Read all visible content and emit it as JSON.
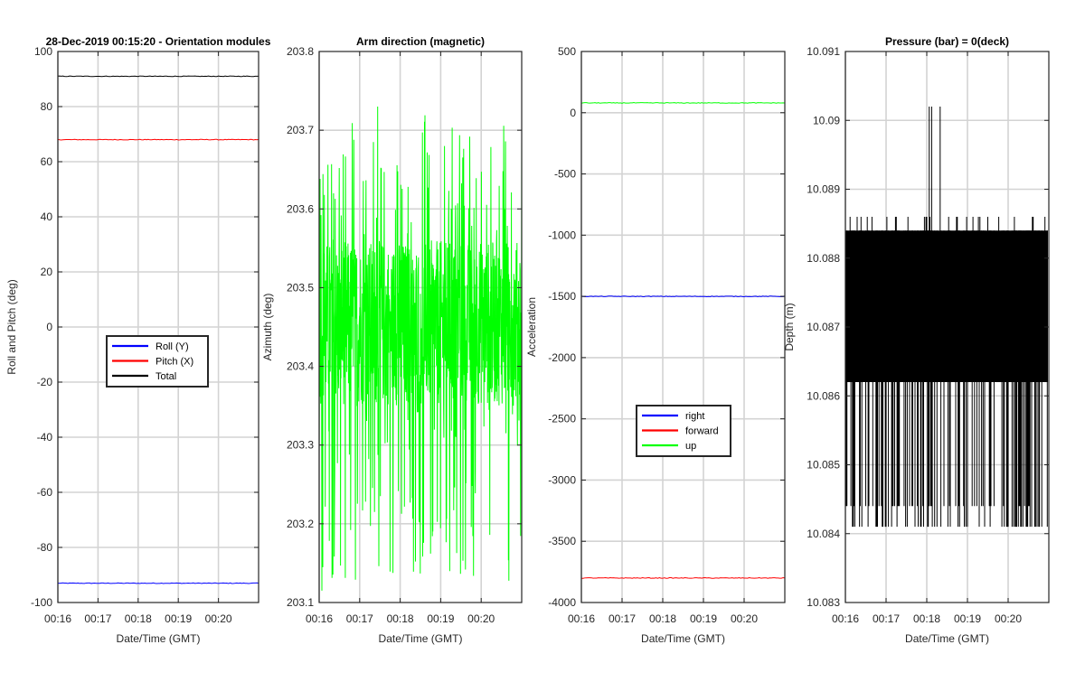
{
  "colors": {
    "roll": "#0000ff",
    "pitch": "#ff0000",
    "total": "#000000",
    "azimuth": "#00ff00",
    "right": "#0000ff",
    "forward": "#ff0000",
    "up": "#00ff00",
    "depth": "#000000",
    "grid": "#d3d3d3",
    "axis": "#262626"
  },
  "chart_data": [
    {
      "type": "line",
      "title": "28-Dec-2019 00:15:20 - Orientation modules",
      "xlabel": "Date/Time (GMT)",
      "ylabel": "Roll and Pitch (deg)",
      "x_tick_labels": [
        "00:16",
        "00:17",
        "00:18",
        "00:19",
        "00:20"
      ],
      "x_ticks_min": [
        16,
        17,
        18,
        19,
        20
      ],
      "xlim_min": [
        16,
        21
      ],
      "ylim": [
        -100,
        100
      ],
      "y_ticks": [
        100,
        80,
        60,
        40,
        20,
        0,
        -20,
        -40,
        -60,
        -80,
        -100
      ],
      "grid": true,
      "legend_position": "center-left",
      "legend": [
        "Roll (Y)",
        "Pitch (X)",
        "Total"
      ],
      "series": [
        {
          "name": "Roll (Y)",
          "x_min": [
            16,
            21
          ],
          "values": [
            -93,
            -93
          ]
        },
        {
          "name": "Pitch (X)",
          "x_min": [
            16,
            21
          ],
          "values": [
            68,
            68
          ]
        },
        {
          "name": "Total",
          "x_min": [
            16,
            21
          ],
          "values": [
            91,
            91
          ]
        }
      ]
    },
    {
      "type": "line",
      "title": "Arm direction (magnetic)",
      "xlabel": "Date/Time (GMT)",
      "ylabel": "Azimuth (deg)",
      "x_tick_labels": [
        "00:16",
        "00:17",
        "00:18",
        "00:19",
        "00:20"
      ],
      "x_ticks_min": [
        16,
        17,
        18,
        19,
        20
      ],
      "xlim_min": [
        16,
        21
      ],
      "ylim": [
        203.1,
        203.8
      ],
      "y_ticks": [
        "203.8",
        "203.7",
        "203.6",
        "203.5",
        "203.4",
        "203.3",
        "203.2",
        "203.1"
      ],
      "grid": true,
      "series": [
        {
          "name": "Azimuth",
          "x_min": [
            16,
            21
          ],
          "values": [
            203.45,
            203.45
          ],
          "noise_band": [
            203.11,
            203.73
          ],
          "typical_band": [
            203.35,
            203.56
          ]
        }
      ]
    },
    {
      "type": "line",
      "title": "",
      "xlabel": "Date/Time (GMT)",
      "ylabel": "Acceleration",
      "x_tick_labels": [
        "00:16",
        "00:17",
        "00:18",
        "00:19",
        "00:20"
      ],
      "x_ticks_min": [
        16,
        17,
        18,
        19,
        20
      ],
      "xlim_min": [
        16,
        21
      ],
      "ylim": [
        -4000,
        500
      ],
      "y_ticks": [
        500,
        0,
        -500,
        -1000,
        -1500,
        -2000,
        -2500,
        -3000,
        -3500,
        -4000
      ],
      "grid": true,
      "legend_position": "lower-center",
      "legend": [
        "right",
        "forward",
        "up"
      ],
      "series": [
        {
          "name": "right",
          "x_min": [
            16,
            21
          ],
          "values": [
            -1500,
            -1500
          ]
        },
        {
          "name": "forward",
          "x_min": [
            16,
            21
          ],
          "values": [
            -3800,
            -3800
          ]
        },
        {
          "name": "up",
          "x_min": [
            16,
            21
          ],
          "values": [
            80,
            80
          ]
        }
      ]
    },
    {
      "type": "line",
      "title": "Pressure (bar) = 0(deck)",
      "xlabel": "Date/Time (GMT)",
      "ylabel": "Depth (m)",
      "x_tick_labels": [
        "00:16",
        "00:17",
        "00:18",
        "00:19",
        "00:20"
      ],
      "x_ticks_min": [
        16,
        17,
        18,
        19,
        20
      ],
      "xlim_min": [
        16,
        21
      ],
      "ylim": [
        10.083,
        10.091
      ],
      "y_ticks": [
        "10.091",
        "10.09",
        "10.089",
        "10.088",
        "10.087",
        "10.086",
        "10.085",
        "10.084",
        "10.083"
      ],
      "grid": true,
      "series": [
        {
          "name": "Depth",
          "x_min": [
            16,
            21
          ],
          "values": [
            10.0873,
            10.0873
          ],
          "band_high": 10.0884,
          "band_low": 10.0862,
          "spike_high": 10.0902,
          "spike_low": 10.0841,
          "spike_times_min": [
            18.06,
            18.12,
            18.33
          ]
        }
      ]
    }
  ]
}
